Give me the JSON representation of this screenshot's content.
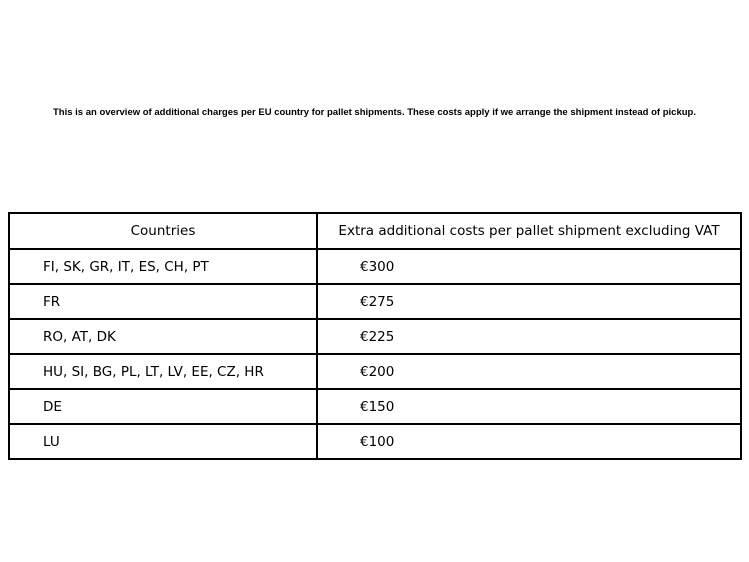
{
  "intro": {
    "text": "This is an overview of additional charges per EU country for pallet shipments. These costs apply if we arrange the shipment instead of pickup."
  },
  "table": {
    "headers": {
      "countries": "Countries",
      "cost": "Extra additional costs per pallet shipment excluding VAT"
    },
    "rows": [
      {
        "countries": "FI, SK, GR, IT, ES, CH, PT",
        "cost": "€300"
      },
      {
        "countries": "FR",
        "cost": "€275"
      },
      {
        "countries": "RO, AT, DK",
        "cost": "€225"
      },
      {
        "countries": "HU, SI, BG, PL, LT, LV, EE, CZ, HR",
        "cost": "€200"
      },
      {
        "countries": "DE",
        "cost": "€150"
      },
      {
        "countries": "LU",
        "cost": "€100"
      }
    ]
  },
  "colors": {
    "background": "#ffffff",
    "border": "#000000",
    "text": "#000000"
  }
}
